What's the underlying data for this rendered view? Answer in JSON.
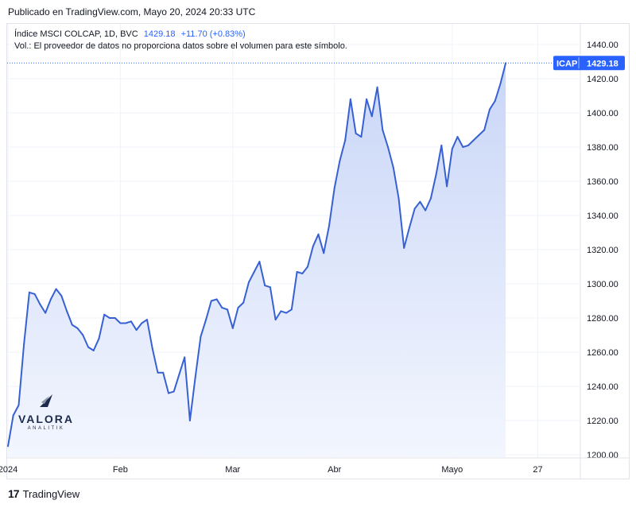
{
  "header": {
    "published": "Publicado en TradingView.com, Mayo 20, 2024 20:33 UTC"
  },
  "legend": {
    "symbol": "Índice MSCI COLCAP, 1D, BVC",
    "price": "1429.18",
    "change": "+11.70 (+0.83%)",
    "volume_note": "Vol.: El proveedor de datos no proporciona datos sobre el volumen para este símbolo."
  },
  "price_label": {
    "ticker": "ICAP",
    "value": "1429.18"
  },
  "watermark": {
    "name": "VALORA",
    "sub": "ANALITIK"
  },
  "footer": {
    "brand": "TradingView",
    "logo": "17"
  },
  "colors": {
    "line": "#3761d3",
    "fill_top": "#c9d6f7",
    "fill_bottom": "#f3f6fe",
    "label_bg": "#2962ff",
    "grid": "#f0f3fa"
  },
  "chart_data": {
    "type": "area",
    "title": "",
    "xlabel": "",
    "ylabel": "",
    "ylim": [
      1200,
      1440
    ],
    "yticks": [
      "1440.00",
      "1420.00",
      "1400.00",
      "1380.00",
      "1360.00",
      "1340.00",
      "1320.00",
      "1300.00",
      "1280.00",
      "1260.00",
      "1240.00",
      "1220.00",
      "1200.00"
    ],
    "xticks": [
      {
        "label": "2024",
        "index": 0
      },
      {
        "label": "Feb",
        "index": 21
      },
      {
        "label": "Mar",
        "index": 42
      },
      {
        "label": "Abr",
        "index": 61
      },
      {
        "label": "Mayo",
        "index": 83
      },
      {
        "label": "27",
        "index": 99
      }
    ],
    "x_index_range": [
      0,
      101
    ],
    "series": [
      {
        "values": [
          1205,
          1223,
          1229,
          1265,
          1295,
          1294,
          1288,
          1283,
          1291,
          1297,
          1293,
          1284,
          1276,
          1274,
          1270,
          1263,
          1261,
          1268,
          1282,
          1280,
          1280,
          1277,
          1277,
          1278,
          1273,
          1277,
          1279,
          1262,
          1248,
          1248,
          1236,
          1237,
          1247,
          1257,
          1220,
          1245,
          1269,
          1279,
          1290,
          1291,
          1286,
          1285,
          1274,
          1286,
          1289,
          1301,
          1307,
          1313,
          1299,
          1298,
          1279,
          1284,
          1283,
          1285,
          1307,
          1306,
          1310,
          1322,
          1329,
          1318,
          1334,
          1356,
          1372,
          1384,
          1408,
          1388,
          1386,
          1408,
          1398,
          1415,
          1390,
          1380,
          1368,
          1350,
          1321,
          1333,
          1344,
          1348,
          1343,
          1350,
          1364,
          1381,
          1357,
          1379,
          1386,
          1380,
          1381,
          1384,
          1387,
          1390,
          1402,
          1407,
          1417,
          1429.18
        ]
      }
    ]
  }
}
